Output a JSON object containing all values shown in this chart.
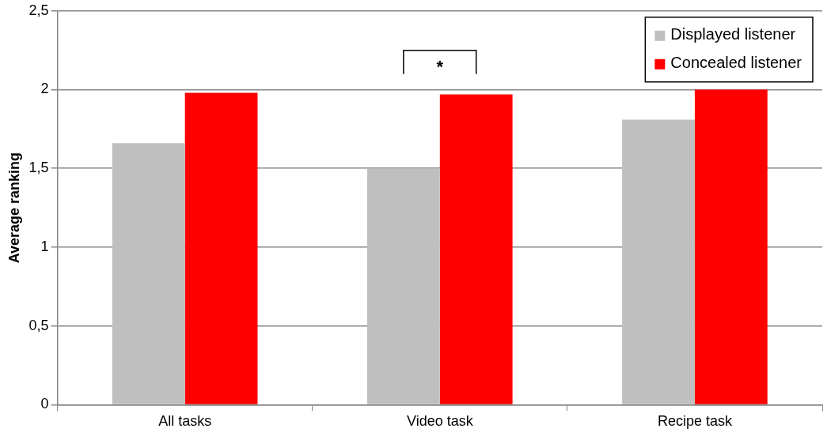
{
  "chart_data": {
    "type": "bar",
    "ylabel": "Average ranking",
    "categories": [
      "All tasks",
      "Video task",
      "Recipe task"
    ],
    "series": [
      {
        "name": "Displayed listener",
        "color": "#bfbfbf",
        "values": [
          1.66,
          1.5,
          1.81
        ]
      },
      {
        "name": "Concealed listener",
        "color": "#ff0000",
        "values": [
          1.98,
          1.97,
          2.0
        ]
      }
    ],
    "ylim": [
      0,
      2.5
    ],
    "yticks": [
      0,
      {
        "value": 0.5,
        "label": "0,5"
      },
      1,
      {
        "value": 1.5,
        "label": "1,5"
      },
      2,
      {
        "value": 2.5,
        "label": "2,5"
      }
    ],
    "grid": "y",
    "legend": "top right",
    "annotations": [
      "*"
    ]
  }
}
